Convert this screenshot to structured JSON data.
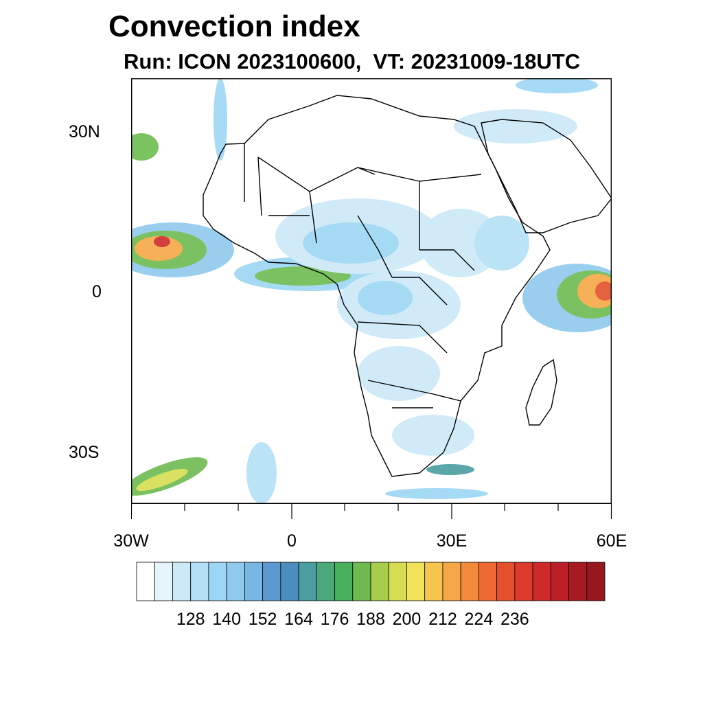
{
  "title": "Convection index",
  "subtitle": "Run: ICON 2023100600,  VT: 20231009-18UTC",
  "axes": {
    "lat_labels": [
      "30N",
      "0",
      "30S"
    ],
    "lon_labels": [
      "30W",
      "0",
      "30E",
      "60E"
    ]
  },
  "colorbar": {
    "colors": [
      "#ffffff",
      "#e6f4fb",
      "#cbe9f7",
      "#b3e0f6",
      "#9cd6f4",
      "#8fc9ee",
      "#78b6e4",
      "#5b9ad0",
      "#4c8dc0",
      "#4a9da0",
      "#4aa87a",
      "#48b05a",
      "#6dbb50",
      "#a8cd4c",
      "#d7dd50",
      "#f0e35a",
      "#f7c44e",
      "#f5a846",
      "#f28a3a",
      "#ee6a32",
      "#e4502c",
      "#dc3a2a",
      "#cf2a2a",
      "#bb1e26",
      "#a81a22",
      "#96181f"
    ],
    "labels": [
      "128",
      "140",
      "152",
      "164",
      "176",
      "188",
      "200",
      "212",
      "224",
      "236"
    ]
  }
}
